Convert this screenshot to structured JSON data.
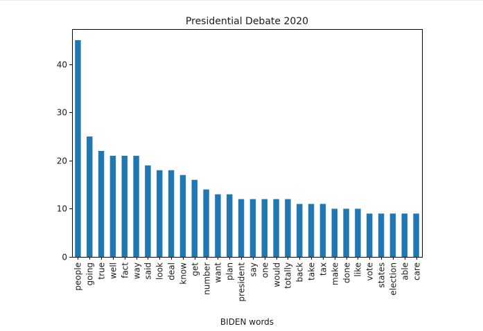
{
  "chart_data": {
    "type": "bar",
    "title": "Presidential Debate 2020",
    "xlabel": "BIDEN words",
    "ylabel": "",
    "ylim": [
      0,
      47.3
    ],
    "yticks": [
      0,
      10,
      20,
      30,
      40
    ],
    "grid": false,
    "legend": "none",
    "bar_color": "#1f77b4",
    "categories": [
      "people",
      "going",
      "true",
      "well",
      "fact",
      "way",
      "said",
      "look",
      "deal",
      "know",
      "get",
      "number",
      "want",
      "plan",
      "president",
      "say",
      "one",
      "would",
      "totally",
      "back",
      "take",
      "tax",
      "make",
      "done",
      "like",
      "vote",
      "states",
      "election",
      "able",
      "care"
    ],
    "values": [
      45,
      25,
      22,
      21,
      21,
      21,
      19,
      18,
      18,
      17,
      16,
      14,
      13,
      13,
      12,
      12,
      12,
      12,
      12,
      11,
      11,
      11,
      10,
      10,
      10,
      9,
      9,
      9,
      9,
      9
    ]
  }
}
